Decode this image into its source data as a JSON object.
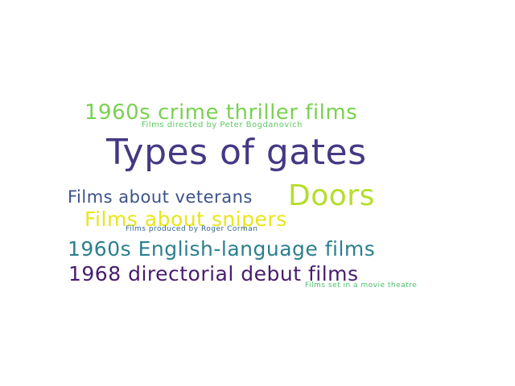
{
  "cloud": {
    "words": [
      {
        "text": "1960s crime thriller films",
        "color": "#7ad151"
      },
      {
        "text": "Films directed by Peter Bogdanovich",
        "color": "#5ec962"
      },
      {
        "text": "Types of gates",
        "color": "#443983"
      },
      {
        "text": "Films about veterans",
        "color": "#3b528b"
      },
      {
        "text": "Doors",
        "color": "#b5de2b"
      },
      {
        "text": "Films about snipers",
        "color": "#e9e51a"
      },
      {
        "text": "Films produced by Roger Corman",
        "color": "#31688e"
      },
      {
        "text": "1960s English-language films",
        "color": "#2c7f8e"
      },
      {
        "text": "1968 directorial debut films",
        "color": "#481c6e"
      },
      {
        "text": "Films set in a movie theatre",
        "color": "#4ac16d"
      }
    ]
  }
}
